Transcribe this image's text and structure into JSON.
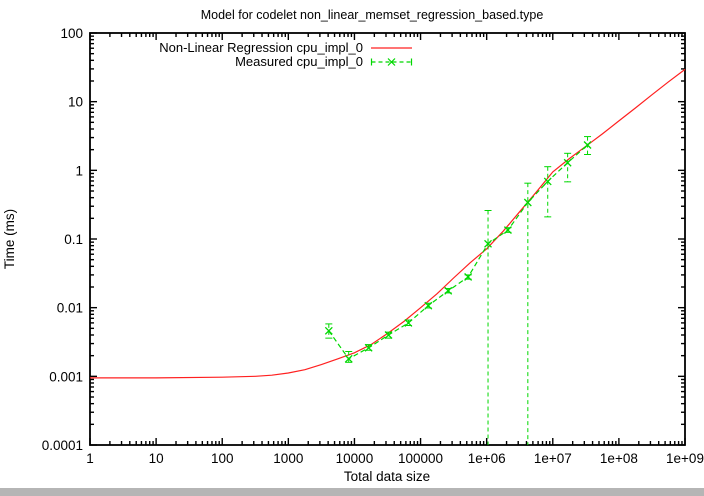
{
  "window": {
    "background": "#ffffff",
    "bottom_bar_color": "#b5b5b5"
  },
  "chart_data": {
    "type": "line",
    "title": "Model for codelet non_linear_memset_regression_based.type",
    "xlabel": "Total data size",
    "ylabel": "Time (ms)",
    "x_scale": "log",
    "y_scale": "log",
    "xlim": [
      1,
      1000000000
    ],
    "ylim": [
      0.0001,
      100
    ],
    "grid": false,
    "legend_position": "top-center-inside",
    "axis_color": "#000000",
    "x_ticks": [
      {
        "value": 1,
        "label": "1"
      },
      {
        "value": 10,
        "label": "10"
      },
      {
        "value": 100,
        "label": "100"
      },
      {
        "value": 1000,
        "label": "1000"
      },
      {
        "value": 10000,
        "label": "10000"
      },
      {
        "value": 100000,
        "label": "100000"
      },
      {
        "value": 1000000,
        "label": "1e+06"
      },
      {
        "value": 10000000,
        "label": "1e+07"
      },
      {
        "value": 100000000,
        "label": "1e+08"
      },
      {
        "value": 1000000000,
        "label": "1e+09"
      }
    ],
    "y_ticks": [
      {
        "value": 100,
        "label": "100"
      },
      {
        "value": 10,
        "label": "10"
      },
      {
        "value": 1,
        "label": "1"
      },
      {
        "value": 0.1,
        "label": "0.1"
      },
      {
        "value": 0.01,
        "label": "0.01"
      },
      {
        "value": 0.001,
        "label": "0.001"
      },
      {
        "value": 0.0001,
        "label": "0.0001"
      }
    ],
    "legend": {
      "entries": [
        {
          "label": "Non-Linear Regression cpu_impl_0",
          "color": "#ff2020",
          "style": "solid-line"
        },
        {
          "label": "Measured cpu_impl_0",
          "color": "#00d800",
          "style": "dashed-line-x-errorbars"
        }
      ]
    },
    "series": [
      {
        "name": "Non-Linear Regression cpu_impl_0",
        "type": "line",
        "color": "#ff2020",
        "points": [
          [
            1,
            0.00095
          ],
          [
            10,
            0.00095
          ],
          [
            100,
            0.00097
          ],
          [
            316,
            0.001
          ],
          [
            562,
            0.00104
          ],
          [
            1000,
            0.00112
          ],
          [
            1778,
            0.00125
          ],
          [
            3162,
            0.00148
          ],
          [
            5623,
            0.0018
          ],
          [
            10000,
            0.0022
          ],
          [
            17783,
            0.0029
          ],
          [
            31623,
            0.0042
          ],
          [
            56234,
            0.0063
          ],
          [
            100000,
            0.01
          ],
          [
            177828,
            0.016
          ],
          [
            316228,
            0.027
          ],
          [
            562341,
            0.045
          ],
          [
            1000000,
            0.072
          ],
          [
            1778279,
            0.13
          ],
          [
            3162278,
            0.25
          ],
          [
            5623413,
            0.48
          ],
          [
            10000000,
            0.95
          ],
          [
            17782794,
            1.48
          ],
          [
            31622777,
            2.24
          ],
          [
            56234133,
            3.39
          ],
          [
            100000000,
            5.25
          ],
          [
            177827941,
            8.1
          ],
          [
            316227766,
            12.6
          ],
          [
            562341325,
            19.5
          ],
          [
            1000000000,
            29.5
          ]
        ]
      },
      {
        "name": "Measured cpu_impl_0",
        "type": "scatter-errorbars",
        "color": "#00d800",
        "marker": "x",
        "points": [
          {
            "x": 4096,
            "y": 0.0046,
            "lo": 0.0036,
            "hi": 0.0058
          },
          {
            "x": 8192,
            "y": 0.0018,
            "lo": 0.0016,
            "hi": 0.0023
          },
          {
            "x": 16384,
            "y": 0.0026,
            "lo": 0.0024,
            "hi": 0.0029
          },
          {
            "x": 32768,
            "y": 0.004,
            "lo": 0.0036,
            "hi": 0.0044
          },
          {
            "x": 65536,
            "y": 0.006,
            "lo": 0.0055,
            "hi": 0.0066
          },
          {
            "x": 131072,
            "y": 0.0107,
            "lo": 0.0099,
            "hi": 0.0116
          },
          {
            "x": 262144,
            "y": 0.0176,
            "lo": 0.0164,
            "hi": 0.019
          },
          {
            "x": 524288,
            "y": 0.028,
            "lo": 0.026,
            "hi": 0.03
          },
          {
            "x": 1048576,
            "y": 0.085,
            "lo": 0.0001,
            "hi": 0.26
          },
          {
            "x": 2097152,
            "y": 0.135,
            "lo": 0.125,
            "hi": 0.146
          },
          {
            "x": 4194304,
            "y": 0.34,
            "lo": 0.0001,
            "hi": 0.65
          },
          {
            "x": 8388608,
            "y": 0.69,
            "lo": 0.21,
            "hi": 1.13
          },
          {
            "x": 16777216,
            "y": 1.29,
            "lo": 0.68,
            "hi": 1.77
          },
          {
            "x": 33554432,
            "y": 2.34,
            "lo": 1.7,
            "hi": 3.1
          }
        ]
      }
    ]
  }
}
